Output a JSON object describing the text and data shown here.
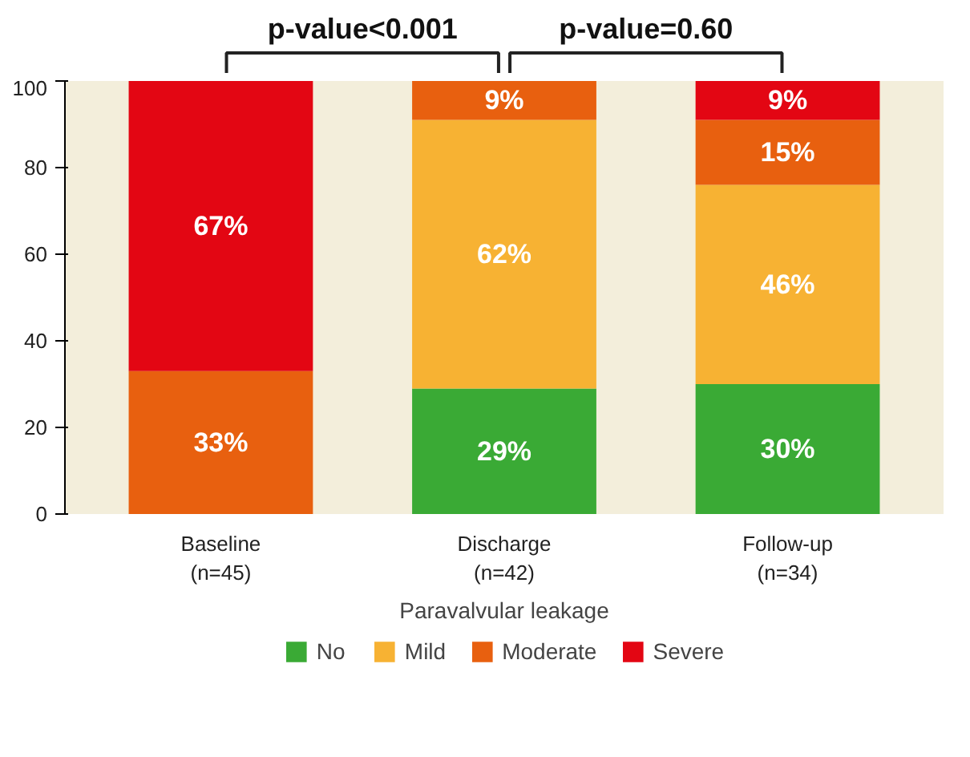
{
  "chart_data": {
    "type": "bar",
    "stacked": true,
    "xlabel": "Paravalvular leakage",
    "categories": [
      "Baseline\n(n=45)",
      "Discharge\n(n=42)",
      "Follow-up\n(n=34)"
    ],
    "series": [
      {
        "name": "No",
        "color": "#3aaa35",
        "values": [
          0,
          29,
          30
        ],
        "value_labels": [
          null,
          "29%",
          "30%"
        ]
      },
      {
        "name": "Mild",
        "color": "#f7b233",
        "values": [
          0,
          62,
          46
        ],
        "value_labels": [
          null,
          "62%",
          "46%"
        ]
      },
      {
        "name": "Moderate",
        "color": "#e8600f",
        "values": [
          33,
          9,
          15
        ],
        "value_labels": [
          "33%",
          "9%",
          "15%"
        ]
      },
      {
        "name": "Severe",
        "color": "#e30613",
        "values": [
          67,
          0,
          9
        ],
        "value_labels": [
          "67%",
          null,
          "9%"
        ]
      }
    ],
    "ylim": [
      0,
      100
    ],
    "yticks": [
      0,
      20,
      40,
      60,
      80,
      100
    ],
    "grid": false,
    "legend": "bottom",
    "annotations": [
      "p-value<0.001",
      "p-value=0.60"
    ]
  }
}
